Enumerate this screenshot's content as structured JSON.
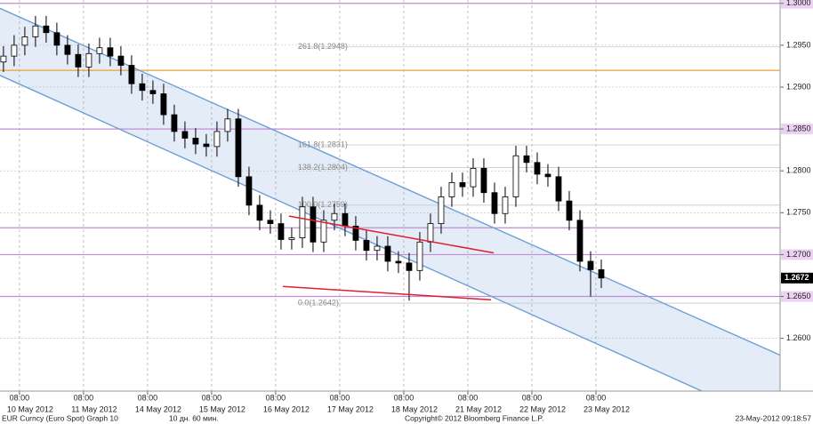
{
  "chart_data": {
    "type": "candlestick",
    "xlim": [
      0.7,
      293
    ],
    "ylim": [
      1.2537,
      1.3004
    ],
    "yticks": [
      {
        "value": 1.3,
        "label": "1.3000"
      },
      {
        "value": 1.295,
        "label": "1.2950"
      },
      {
        "value": 1.29,
        "label": "1.2900"
      },
      {
        "value": 1.285,
        "label": "1.2850"
      },
      {
        "value": 1.28,
        "label": "1.2800"
      },
      {
        "value": 1.275,
        "label": "1.2750"
      },
      {
        "value": 1.27,
        "label": "1.2700"
      },
      {
        "value": 1.265,
        "label": "1.2650"
      },
      {
        "value": 1.26,
        "label": "1.2600"
      }
    ],
    "xticks": [
      {
        "value": 8,
        "label": "08:00"
      },
      {
        "value": 32,
        "label": "08:00"
      },
      {
        "value": 56,
        "label": "08:00"
      },
      {
        "value": 80,
        "label": "08:00"
      },
      {
        "value": 104,
        "label": "08:00"
      },
      {
        "value": 128,
        "label": "08:00"
      },
      {
        "value": 152,
        "label": "08:00"
      },
      {
        "value": 176,
        "label": "08:00"
      },
      {
        "value": 200,
        "label": "08:00"
      },
      {
        "value": 224,
        "label": "08:00"
      }
    ],
    "date_ticks": [
      {
        "value": 12,
        "label": "10 May 2012"
      },
      {
        "value": 36,
        "label": "11 May 2012"
      },
      {
        "value": 60,
        "label": "14 May 2012"
      },
      {
        "value": 84,
        "label": "15 May 2012"
      },
      {
        "value": 108,
        "label": "16 May 2012"
      },
      {
        "value": 132,
        "label": "17 May 2012"
      },
      {
        "value": 156,
        "label": "18 May 2012"
      },
      {
        "value": 180,
        "label": "21 May 2012"
      },
      {
        "value": 204,
        "label": "22 May 2012"
      },
      {
        "value": 228,
        "label": "23 May 2012"
      }
    ],
    "grid": true,
    "up_color": "#ffffff",
    "down_color": "#000000",
    "x": [
      2,
      6,
      10,
      14,
      18,
      22,
      26,
      30,
      34,
      38,
      42,
      46,
      50,
      54,
      58,
      62,
      66,
      70,
      74,
      78,
      82,
      86,
      90,
      94,
      98,
      102,
      106,
      110,
      114,
      118,
      122,
      126,
      130,
      134,
      138,
      142,
      146,
      150,
      154,
      158,
      162,
      166,
      170,
      174,
      178,
      182,
      186,
      190,
      194,
      198,
      202,
      206,
      210,
      214,
      218,
      222,
      226
    ],
    "open": [
      1.293,
      1.2937,
      1.295,
      1.296,
      1.2973,
      1.2965,
      1.295,
      1.2939,
      1.2924,
      1.294,
      1.2947,
      1.2937,
      1.2926,
      1.2904,
      1.2896,
      1.2892,
      1.2867,
      1.2847,
      1.2839,
      1.2832,
      1.2829,
      1.2847,
      1.2862,
      1.2793,
      1.2759,
      1.2741,
      1.2737,
      1.2718,
      1.272,
      1.2757,
      1.2715,
      1.2741,
      1.2749,
      1.2734,
      1.2717,
      1.2705,
      1.271,
      1.2692,
      1.269,
      1.2681,
      1.2715,
      1.2737,
      1.2769,
      1.2786,
      1.2781,
      1.2803,
      1.2774,
      1.2749,
      1.2769,
      1.2818,
      1.281,
      1.2796,
      1.2793,
      1.2764,
      1.2741,
      1.2692,
      1.2682
    ],
    "high": [
      1.2949,
      1.2962,
      1.2972,
      1.2985,
      1.2985,
      1.2977,
      1.2962,
      1.2951,
      1.2952,
      1.2959,
      1.2959,
      1.2949,
      1.2938,
      1.2916,
      1.2908,
      1.2904,
      1.2879,
      1.2859,
      1.2851,
      1.2844,
      1.2859,
      1.2874,
      1.2874,
      1.2805,
      1.2771,
      1.2753,
      1.2749,
      1.2732,
      1.2769,
      1.2769,
      1.2753,
      1.2761,
      1.2761,
      1.2746,
      1.2729,
      1.2722,
      1.2722,
      1.2704,
      1.2702,
      1.2727,
      1.2749,
      1.2781,
      1.2798,
      1.2798,
      1.2815,
      1.2815,
      1.2786,
      1.2781,
      1.283,
      1.283,
      1.2822,
      1.2808,
      1.2805,
      1.2776,
      1.2753,
      1.2704,
      1.2694
    ],
    "low": [
      1.2918,
      1.2925,
      1.2938,
      1.2948,
      1.2953,
      1.2938,
      1.2927,
      1.2912,
      1.2912,
      1.2928,
      1.2925,
      1.2914,
      1.2892,
      1.2884,
      1.288,
      1.2855,
      1.2835,
      1.2827,
      1.282,
      1.2817,
      1.2817,
      1.2835,
      1.2781,
      1.2747,
      1.2729,
      1.2725,
      1.2706,
      1.2706,
      1.2708,
      1.2703,
      1.2703,
      1.2729,
      1.2722,
      1.2705,
      1.2693,
      1.2693,
      1.268,
      1.2678,
      1.2645,
      1.2669,
      1.2703,
      1.2725,
      1.2757,
      1.2769,
      1.2769,
      1.2762,
      1.2737,
      1.2737,
      1.2757,
      1.2798,
      1.2784,
      1.2781,
      1.2752,
      1.2729,
      1.268,
      1.265,
      1.266
    ],
    "close": [
      1.2937,
      1.295,
      1.296,
      1.2973,
      1.2965,
      1.295,
      1.2939,
      1.2924,
      1.294,
      1.2947,
      1.2937,
      1.2926,
      1.2904,
      1.2896,
      1.2892,
      1.2867,
      1.2847,
      1.2839,
      1.2832,
      1.2829,
      1.2847,
      1.2862,
      1.2793,
      1.2759,
      1.2741,
      1.2737,
      1.2718,
      1.272,
      1.2757,
      1.2715,
      1.2741,
      1.2749,
      1.2734,
      1.2717,
      1.2705,
      1.271,
      1.2692,
      1.269,
      1.2681,
      1.2715,
      1.2737,
      1.2769,
      1.2786,
      1.2781,
      1.2803,
      1.2774,
      1.2749,
      1.2769,
      1.2818,
      1.281,
      1.2796,
      1.2793,
      1.2764,
      1.2741,
      1.2692,
      1.2682,
      1.2672
    ],
    "channel": {
      "x": [
        0.7,
        293
      ],
      "upper": [
        1.2994,
        1.258
      ],
      "lower": [
        1.2914,
        1.2495
      ],
      "color": "#6f9fd6",
      "fill": "#dbe6f6"
    },
    "trendlines": [
      {
        "x": [
          109,
          185.7
        ],
        "y": [
          1.2746,
          1.2702
        ],
        "color": "#e0202a"
      },
      {
        "x": [
          106.7,
          184.7
        ],
        "y": [
          1.2662,
          1.2646
        ],
        "color": "#e0202a"
      }
    ],
    "hlines": [
      {
        "value": 1.292,
        "color": "#f0a030"
      },
      {
        "value": 1.3,
        "color": "#c58ad8"
      },
      {
        "value": 1.285,
        "color": "#c58ad8"
      },
      {
        "value": 1.2732,
        "color": "#c58ad8"
      },
      {
        "value": 1.27,
        "color": "#c58ad8"
      },
      {
        "value": 1.265,
        "color": "#c58ad8"
      }
    ],
    "fib_x": 112.3,
    "fib_levels": [
      {
        "value": 1.2948,
        "label": "261.8(1.2948)"
      },
      {
        "value": 1.2831,
        "label": "161.8(1.2831)"
      },
      {
        "value": 1.2804,
        "label": "138.2(1.2804)"
      },
      {
        "value": 1.2759,
        "label": "100.0(1.2759)"
      },
      {
        "value": 1.2642,
        "label": "0.0(1.2642)"
      }
    ],
    "last": {
      "value": 1.2672,
      "label": "1.2672"
    }
  },
  "footer": {
    "security": "EUR Curncy (Euro Spot) Graph 10",
    "period": "10 дн. 60 мин.",
    "copyright": "Copyright© 2012 Bloomberg Finance L.P.",
    "timestamp": "23-May-2012 09:18:57"
  }
}
